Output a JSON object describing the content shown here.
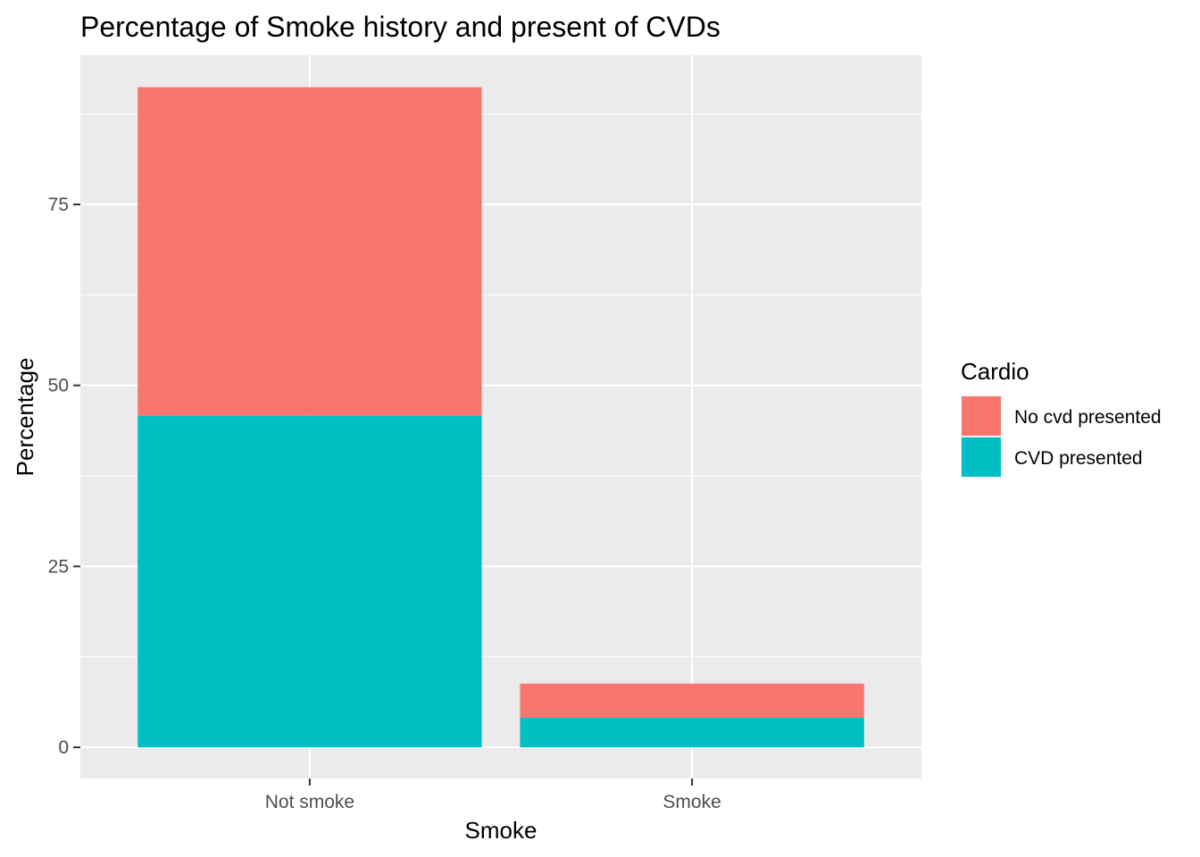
{
  "chart_data": {
    "type": "bar",
    "stacked": true,
    "title": "Percentage of Smoke history and present of CVDs",
    "xlabel": "Smoke",
    "ylabel": "Percentage",
    "categories": [
      "Not smoke",
      "Smoke"
    ],
    "series": [
      {
        "name": "No cvd presented",
        "values": [
          45.4,
          4.7
        ],
        "color": "#F8766D"
      },
      {
        "name": "CVD presented",
        "values": [
          45.8,
          4.1
        ],
        "color": "#00BFC4"
      }
    ],
    "ylim": [
      -4.3,
      95.6
    ],
    "yticks": [
      0,
      25,
      50,
      75
    ],
    "yticklabels": [
      "0",
      "25",
      "50",
      "75"
    ],
    "legend": {
      "title": "Cardio",
      "position": "right"
    },
    "grid": true,
    "panel_background": "#EBEBEB"
  }
}
